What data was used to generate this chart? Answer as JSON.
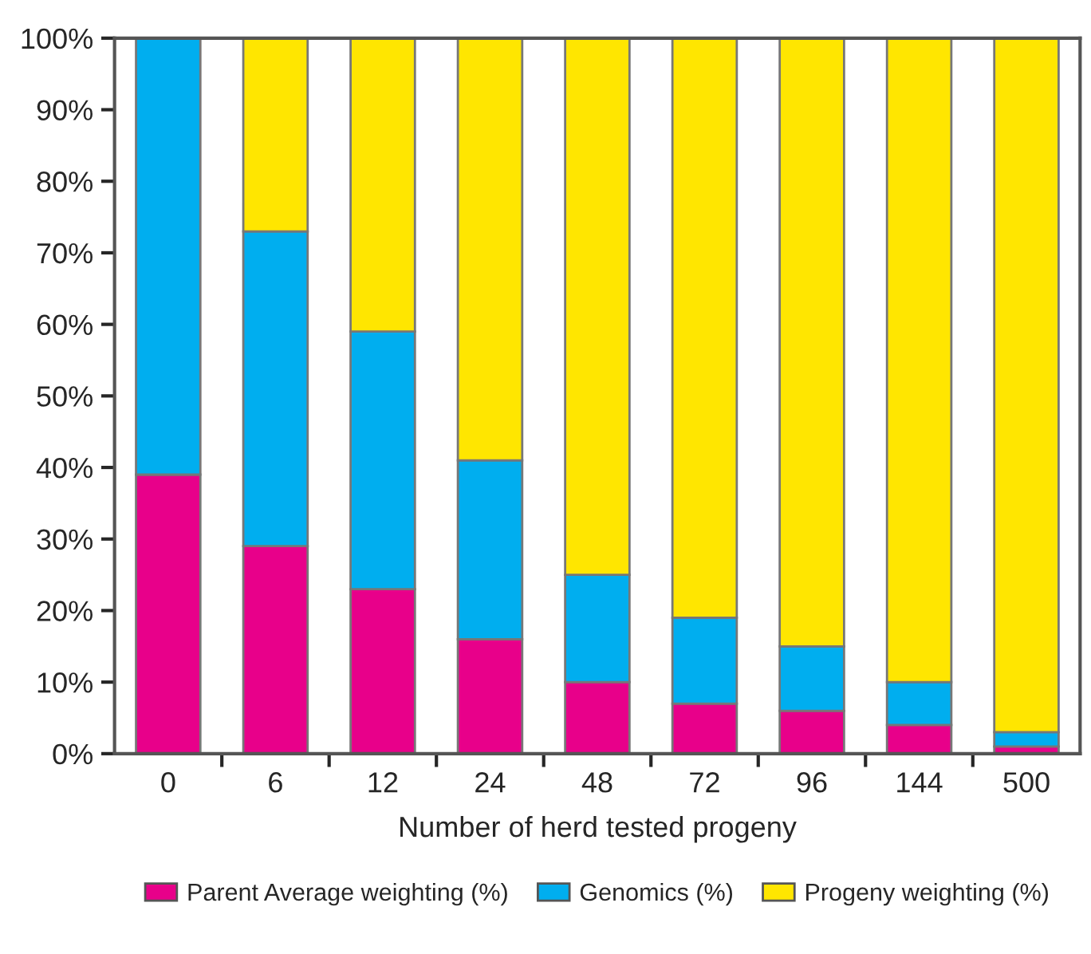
{
  "chart_data": {
    "type": "bar",
    "stacked": true,
    "xlabel": "Number of herd tested progeny",
    "categories": [
      "0",
      "6",
      "12",
      "24",
      "48",
      "72",
      "96",
      "144",
      "500"
    ],
    "series": [
      {
        "name": "Parent Average weighting (%)",
        "color": "#e8008a",
        "values": [
          39,
          29,
          23,
          16,
          10,
          7,
          6,
          4,
          1
        ]
      },
      {
        "name": "Genomics (%)",
        "color": "#00aeef",
        "values": [
          61,
          44,
          36,
          25,
          15,
          12,
          9,
          6,
          2
        ]
      },
      {
        "name": "Progeny weighting (%)",
        "color": "#ffe600",
        "values": [
          0,
          27,
          41,
          59,
          75,
          81,
          85,
          90,
          97
        ]
      }
    ],
    "ylim": [
      0,
      100
    ],
    "yticks": [
      {
        "value": 0,
        "label": "0%"
      },
      {
        "value": 10,
        "label": "10%"
      },
      {
        "value": 20,
        "label": "20%"
      },
      {
        "value": 30,
        "label": "30%"
      },
      {
        "value": 40,
        "label": "40%"
      },
      {
        "value": 50,
        "label": "50%"
      },
      {
        "value": 60,
        "label": "60%"
      },
      {
        "value": 70,
        "label": "70%"
      },
      {
        "value": 80,
        "label": "80%"
      },
      {
        "value": 90,
        "label": "90%"
      },
      {
        "value": 100,
        "label": "100%"
      }
    ],
    "grid": false,
    "legend": "bottom"
  }
}
